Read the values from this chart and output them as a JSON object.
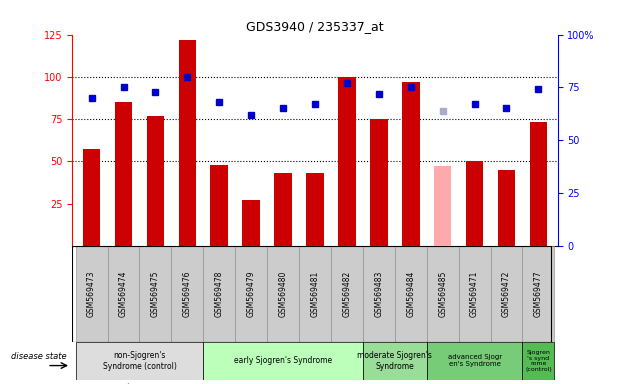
{
  "title": "GDS3940 / 235337_at",
  "samples": [
    "GSM569473",
    "GSM569474",
    "GSM569475",
    "GSM569476",
    "GSM569478",
    "GSM569479",
    "GSM569480",
    "GSM569481",
    "GSM569482",
    "GSM569483",
    "GSM569484",
    "GSM569485",
    "GSM569471",
    "GSM569472",
    "GSM569477"
  ],
  "bar_values": [
    57,
    85,
    77,
    122,
    48,
    27,
    43,
    43,
    100,
    75,
    97,
    47,
    50,
    45,
    73
  ],
  "bar_absent": [
    false,
    false,
    false,
    false,
    false,
    false,
    false,
    false,
    false,
    false,
    false,
    true,
    false,
    false,
    false
  ],
  "rank_values": [
    70,
    75,
    73,
    80,
    68,
    62,
    65,
    67,
    77,
    72,
    75,
    64,
    67,
    65,
    74
  ],
  "rank_absent": [
    false,
    false,
    false,
    false,
    false,
    false,
    false,
    false,
    false,
    false,
    false,
    true,
    false,
    false,
    false
  ],
  "bar_color": "#cc0000",
  "bar_absent_color": "#ffaaaa",
  "rank_color": "#0000cc",
  "rank_absent_color": "#aaaacc",
  "ylim_left": [
    0,
    125
  ],
  "ylim_right": [
    0,
    100
  ],
  "groups": [
    {
      "label": "non-Sjogren's\nSyndrome (control)",
      "start": 0,
      "end": 4,
      "color": "#dddddd"
    },
    {
      "label": "early Sjogren's Syndrome",
      "start": 4,
      "end": 9,
      "color": "#bbffbb"
    },
    {
      "label": "moderate Sjogren's\nSyndrome",
      "start": 9,
      "end": 11,
      "color": "#99dd99"
    },
    {
      "label": "advanced Sjogren's Syndrome",
      "start": 11,
      "end": 14,
      "color": "#77cc77"
    },
    {
      "label": "Sjogren\n's synd\nrome\n(control)",
      "start": 14,
      "end": 15,
      "color": "#55bb55"
    }
  ],
  "yticks_left": [
    25,
    50,
    75,
    100,
    125
  ],
  "yticks_right": [
    0,
    25,
    50,
    75,
    100
  ],
  "ytick_labels_right": [
    "0",
    "25",
    "50",
    "75",
    "100%"
  ],
  "hlines": [
    50,
    75,
    100
  ],
  "disease_state_label": "disease state"
}
